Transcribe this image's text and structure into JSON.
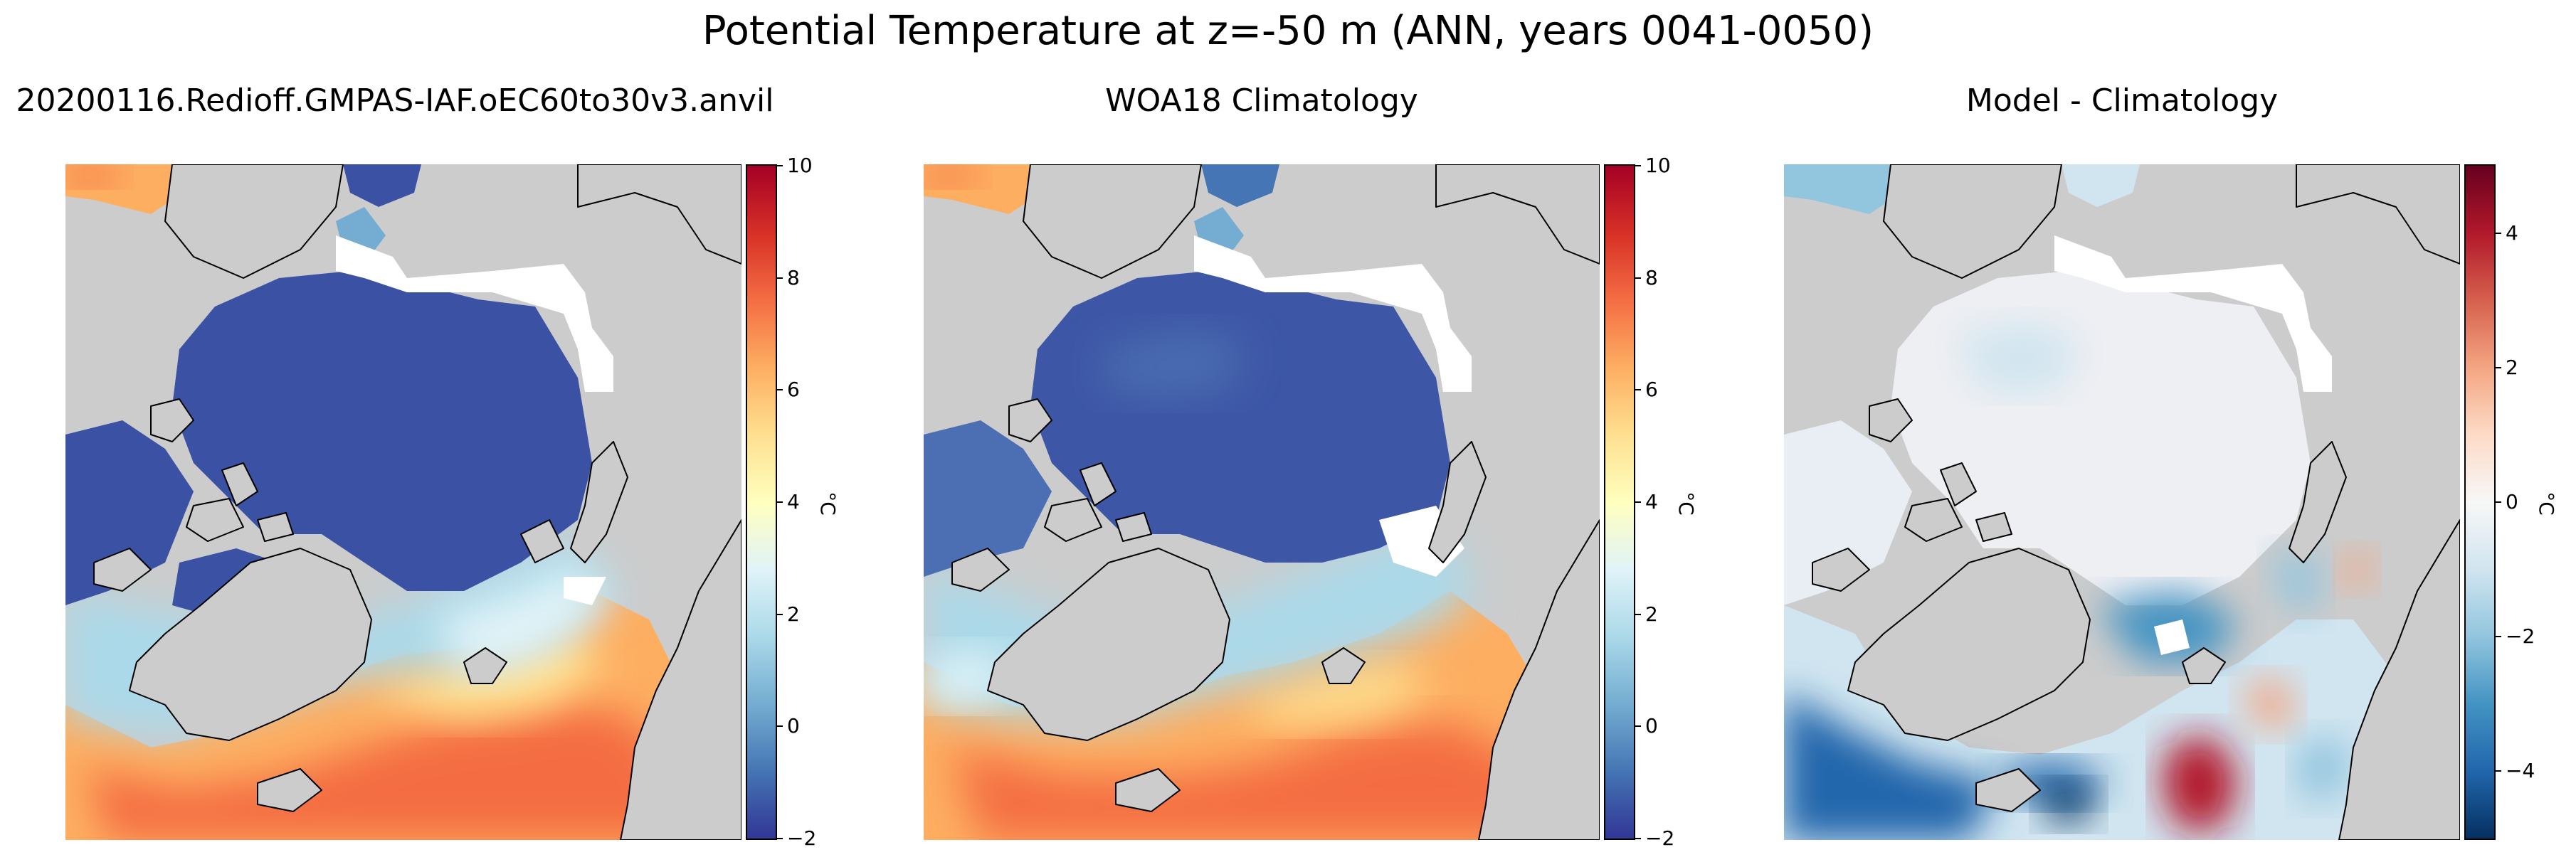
{
  "figure": {
    "title": "Potential Temperature at z=-50 m (ANN, years 0041-0050)"
  },
  "colors": {
    "land": "#cccccc",
    "no_data": "#ffffff",
    "coastline": "#000000",
    "rdylbu_r": [
      "#313695",
      "#4575b4",
      "#74add1",
      "#abd9e9",
      "#e0f3f8",
      "#ffffbf",
      "#fee090",
      "#fdae61",
      "#f46d43",
      "#d73027",
      "#a50026"
    ],
    "rdbu_r": [
      "#053061",
      "#2166ac",
      "#4393c3",
      "#92c5de",
      "#d1e5f0",
      "#f7f7f7",
      "#fddbc7",
      "#f4a582",
      "#d6604d",
      "#b2182b",
      "#67001f"
    ]
  },
  "panels": [
    {
      "title": "20200116.Redioff.GMPAS-IAF.oEC60to30v3.anvil",
      "colormap": "rdylbu_r",
      "colorbar": {
        "min": -2,
        "max": 10,
        "ticks": [
          "10",
          "8",
          "6",
          "4",
          "2",
          "0",
          "−2"
        ],
        "unit": "°C"
      }
    },
    {
      "title": "WOA18 Climatology",
      "colormap": "rdylbu_r",
      "colorbar": {
        "min": -2,
        "max": 10,
        "ticks": [
          "10",
          "8",
          "6",
          "4",
          "2",
          "0",
          "−2"
        ],
        "unit": "°C"
      }
    },
    {
      "title": "Model - Climatology",
      "colormap": "rdbu_r",
      "colorbar": {
        "min": -5,
        "max": 5,
        "ticks": [
          "4",
          "2",
          "0",
          "−2",
          "−4"
        ],
        "unit": "°C"
      }
    }
  ]
}
